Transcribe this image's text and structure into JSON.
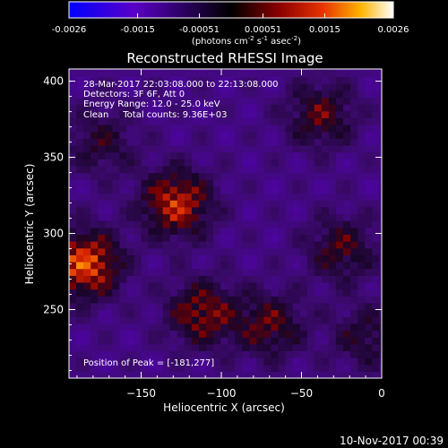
{
  "colorbar": {
    "ticks": [
      "-0.0026",
      "-0.0015",
      "-0.00051",
      "0.00051",
      "0.0015",
      "0.0026"
    ],
    "tick_values": [
      -0.0026,
      -0.0015,
      -0.00051,
      0.00051,
      0.0015,
      0.0026
    ],
    "range": [
      -0.0026,
      0.0026
    ],
    "unit_main": "(photons cm",
    "unit_sup1": "-2",
    "unit_mid": " s",
    "unit_sup2": "-1",
    "unit_end": " asec",
    "unit_sup3": "-2",
    "unit_close": ")",
    "colors": [
      "#0000ff",
      "#5a00c8",
      "#000000",
      "#8c0000",
      "#e63200",
      "#ffb400",
      "#ffffff"
    ]
  },
  "plot": {
    "title": "Reconstructed RHESSI Image",
    "xlabel": "Heliocentric X (arcsec)",
    "ylabel": "Heliocentric Y (arcsec)",
    "xlim": [
      -195,
      0
    ],
    "ylim": [
      205,
      408
    ],
    "xticks": [
      -150,
      -100,
      -50,
      0
    ],
    "yticks": [
      250,
      300,
      350,
      400
    ],
    "xtick_labels": [
      "−150",
      "−100",
      "−50",
      "0"
    ],
    "ytick_labels": [
      "250",
      "300",
      "350",
      "400"
    ]
  },
  "annotations": {
    "line1": "28-Mar-2017 22:03:08.000 to 22:13:08.000",
    "line2": "Detectors: 3F 6F, Att 0",
    "line3": "Energy Range: 12.0 - 25.0 keV",
    "line4": "Clean     Total counts: 9.36E+03",
    "peak": "Position of Peak = [-181,277]"
  },
  "footer": {
    "timestamp": "10-Nov-2017 00:39"
  },
  "chart_data": {
    "type": "heatmap",
    "title": "Reconstructed RHESSI Image",
    "xlabel": "Heliocentric X (arcsec)",
    "ylabel": "Heliocentric Y (arcsec)",
    "xlim": [
      -195,
      0
    ],
    "ylim": [
      205,
      408
    ],
    "value_range": [
      -0.0026,
      0.0026
    ],
    "peak": [
      -181,
      277
    ],
    "sources": [
      {
        "x": -185,
        "y": 280,
        "value": 0.0026
      },
      {
        "x": -128,
        "y": 320,
        "value": 0.0022
      },
      {
        "x": -112,
        "y": 248,
        "value": 0.0017
      },
      {
        "x": -70,
        "y": 240,
        "value": 0.0014
      },
      {
        "x": -38,
        "y": 378,
        "value": 0.0014
      },
      {
        "x": -25,
        "y": 290,
        "value": 0.0013
      },
      {
        "x": -175,
        "y": 360,
        "value": 0.001
      },
      {
        "x": -10,
        "y": 232,
        "value": 0.001
      }
    ]
  }
}
